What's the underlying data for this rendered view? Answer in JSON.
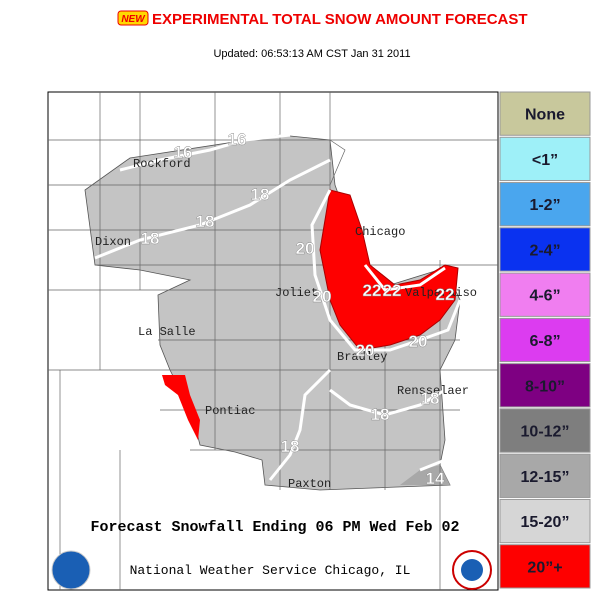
{
  "header": {
    "badge": "NEW",
    "title": "EXPERIMENTAL TOTAL SNOW AMOUNT FORECAST",
    "updated": "Updated: 06:53:13 AM CST Jan 31 2011"
  },
  "map": {
    "cities": [
      "Rockford",
      "Dixon",
      "La Salle",
      "Pontiac",
      "Joliet",
      "Chicago",
      "Bradley",
      "Valparaiso",
      "Rensselaer",
      "Paxton"
    ],
    "contour_labels": [
      "16",
      "16",
      "18",
      "18",
      "18",
      "20",
      "20",
      "22",
      "22",
      "22",
      "20",
      "20",
      "18",
      "18",
      "18",
      "14"
    ],
    "caption": "Forecast Snowfall Ending 06 PM Wed Feb 02",
    "footer": "National Weather Service Chicago, IL"
  },
  "legend": [
    {
      "label": "None",
      "color": "#c8c89c"
    },
    {
      "label": "<1”",
      "color": "#9ef0f8"
    },
    {
      "label": "1-2”",
      "color": "#4aa6ee"
    },
    {
      "label": "2-4”",
      "color": "#0a32f0"
    },
    {
      "label": "4-6”",
      "color": "#f07ef0"
    },
    {
      "label": "6-8”",
      "color": "#dc3cf0"
    },
    {
      "label": "8-10”",
      "color": "#7e0082"
    },
    {
      "label": "10-12”",
      "color": "#7e7e7e"
    },
    {
      "label": "12-15”",
      "color": "#a8a8a8"
    },
    {
      "label": "15-20”",
      "color": "#d6d6d6"
    },
    {
      "label": "20”+",
      "color": "#fe0000"
    }
  ]
}
